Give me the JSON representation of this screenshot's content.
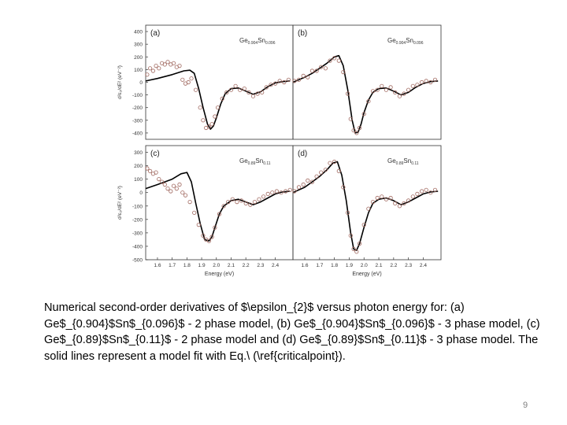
{
  "caption": "Numerical second-order derivatives of $\\epsilon_{2}$ versus photon energy for: (a) Ge$_{0.904}$Sn$_{0.096}$ - 2 phase model, (b) Ge$_{0.904}$Sn$_{0.096}$ - 3 phase model, (c) Ge$_{0.89}$Sn$_{0.11}$ - 2 phase model and (d) Ge$_{0.89}$Sn$_{0.11}$ - 3 phase model. The solid lines represent a model fit with Eq.\\ (\\ref{criticalpoint}).",
  "slide_number": "9",
  "colors": {
    "fit_line": "#000000",
    "data_marker": "#a0685f",
    "axis": "#333333"
  },
  "chart_data": [
    {
      "type": "line",
      "panel_label": "(a)",
      "composition": {
        "main1": "Ge",
        "sub1": "0.904",
        "main2": "Sn",
        "sub2": "0.096"
      },
      "ylabel": "d²ε₂/dE² (eV⁻²)",
      "xlabel": "",
      "xlim": [
        1.52,
        2.52
      ],
      "ylim": [
        -450,
        450
      ],
      "yticks": [
        400,
        300,
        200,
        100,
        0,
        -100,
        -200,
        -300,
        -400
      ],
      "xticks": [],
      "series": [
        {
          "kind": "fit",
          "x": [
            1.52,
            1.6,
            1.7,
            1.78,
            1.82,
            1.85,
            1.88,
            1.91,
            1.94,
            1.96,
            1.98,
            2.0,
            2.03,
            2.06,
            2.1,
            2.15,
            2.2,
            2.25,
            2.3,
            2.35,
            2.4,
            2.45,
            2.5
          ],
          "y": [
            10,
            30,
            60,
            90,
            95,
            70,
            -50,
            -200,
            -330,
            -370,
            -345,
            -280,
            -170,
            -90,
            -50,
            -45,
            -70,
            -95,
            -75,
            -35,
            -5,
            5,
            10
          ]
        },
        {
          "kind": "data",
          "x": [
            1.53,
            1.55,
            1.57,
            1.59,
            1.61,
            1.63,
            1.65,
            1.67,
            1.69,
            1.71,
            1.73,
            1.75,
            1.77,
            1.79,
            1.81,
            1.83,
            1.86,
            1.89,
            1.91,
            1.93,
            1.95,
            1.97,
            1.99,
            2.01,
            2.04,
            2.07,
            2.1,
            2.13,
            2.16,
            2.19,
            2.22,
            2.25,
            2.28,
            2.31,
            2.34,
            2.37,
            2.4,
            2.43,
            2.46,
            2.49
          ],
          "y": [
            60,
            110,
            90,
            130,
            110,
            150,
            140,
            160,
            140,
            150,
            120,
            130,
            20,
            -10,
            0,
            30,
            -60,
            -200,
            -300,
            -360,
            -350,
            -330,
            -270,
            -200,
            -130,
            -80,
            -60,
            -30,
            -60,
            -50,
            -80,
            -110,
            -90,
            -80,
            -40,
            -20,
            -10,
            10,
            0,
            20
          ]
        }
      ]
    },
    {
      "type": "line",
      "panel_label": "(b)",
      "composition": {
        "main1": "Ge",
        "sub1": "0.904",
        "main2": "Sn",
        "sub2": "0.096"
      },
      "ylabel": "",
      "xlabel": "",
      "xlim": [
        1.52,
        2.52
      ],
      "ylim": [
        -450,
        450
      ],
      "yticks": [],
      "xticks": [],
      "series": [
        {
          "kind": "fit",
          "x": [
            1.52,
            1.6,
            1.65,
            1.7,
            1.75,
            1.8,
            1.83,
            1.86,
            1.89,
            1.92,
            1.94,
            1.96,
            1.98,
            2.0,
            2.03,
            2.06,
            2.1,
            2.15,
            2.2,
            2.25,
            2.3,
            2.35,
            2.4,
            2.45,
            2.5
          ],
          "y": [
            0,
            40,
            70,
            110,
            150,
            200,
            210,
            130,
            -60,
            -300,
            -400,
            -395,
            -330,
            -240,
            -140,
            -80,
            -50,
            -45,
            -70,
            -100,
            -80,
            -40,
            -10,
            5,
            10
          ]
        },
        {
          "kind": "data",
          "x": [
            1.53,
            1.56,
            1.59,
            1.62,
            1.65,
            1.68,
            1.71,
            1.74,
            1.77,
            1.8,
            1.83,
            1.86,
            1.89,
            1.91,
            1.93,
            1.95,
            1.97,
            2.0,
            2.03,
            2.06,
            2.09,
            2.12,
            2.15,
            2.18,
            2.21,
            2.24,
            2.27,
            2.3,
            2.33,
            2.36,
            2.39,
            2.42,
            2.45,
            2.48
          ],
          "y": [
            10,
            20,
            50,
            40,
            90,
            90,
            120,
            110,
            170,
            190,
            170,
            80,
            -90,
            -290,
            -380,
            -400,
            -360,
            -250,
            -150,
            -70,
            -60,
            -30,
            -60,
            -40,
            -80,
            -110,
            -90,
            -60,
            -30,
            -20,
            0,
            10,
            0,
            20
          ]
        }
      ]
    },
    {
      "type": "line",
      "panel_label": "(c)",
      "composition": {
        "main1": "Ge",
        "sub1": "0.89",
        "main2": "Sn",
        "sub2": "0.11"
      },
      "ylabel": "d²ε₂/dE² (eV⁻²)",
      "xlabel": "Energy (eV)",
      "xlim": [
        1.52,
        2.52
      ],
      "ylim": [
        -500,
        350
      ],
      "yticks": [
        300,
        200,
        100,
        0,
        -100,
        -200,
        -300,
        -400,
        -500
      ],
      "xticks": [
        "1.6",
        "1.7",
        "1.8",
        "1.9",
        "2.0",
        "2.1",
        "2.2",
        "2.3",
        "2.4"
      ],
      "series": [
        {
          "kind": "fit",
          "x": [
            1.52,
            1.6,
            1.7,
            1.76,
            1.8,
            1.83,
            1.86,
            1.89,
            1.92,
            1.95,
            1.97,
            1.99,
            2.02,
            2.05,
            2.1,
            2.15,
            2.2,
            2.25,
            2.3,
            2.35,
            2.4,
            2.45,
            2.5
          ],
          "y": [
            30,
            60,
            100,
            140,
            150,
            80,
            -80,
            -230,
            -350,
            -360,
            -330,
            -260,
            -160,
            -100,
            -60,
            -50,
            -70,
            -90,
            -70,
            -40,
            -10,
            5,
            10
          ]
        },
        {
          "kind": "data",
          "x": [
            1.53,
            1.55,
            1.57,
            1.59,
            1.61,
            1.63,
            1.65,
            1.67,
            1.69,
            1.71,
            1.73,
            1.75,
            1.77,
            1.79,
            1.82,
            1.85,
            1.88,
            1.91,
            1.93,
            1.95,
            1.97,
            1.99,
            2.02,
            2.05,
            2.08,
            2.11,
            2.14,
            2.17,
            2.2,
            2.23,
            2.26,
            2.29,
            2.32,
            2.35,
            2.38,
            2.41,
            2.44,
            2.47,
            2.5
          ],
          "y": [
            180,
            160,
            140,
            150,
            100,
            80,
            60,
            30,
            10,
            50,
            30,
            60,
            0,
            -20,
            -70,
            -150,
            -240,
            -320,
            -350,
            -360,
            -330,
            -260,
            -160,
            -100,
            -70,
            -50,
            -70,
            -60,
            -80,
            -90,
            -70,
            -50,
            -30,
            -10,
            0,
            10,
            0,
            10,
            20
          ]
        }
      ]
    },
    {
      "type": "line",
      "panel_label": "(d)",
      "composition": {
        "main1": "Ge",
        "sub1": "0.89",
        "main2": "Sn",
        "sub2": "0.11"
      },
      "ylabel": "",
      "xlabel": "Energy (eV)",
      "xlim": [
        1.52,
        2.52
      ],
      "ylim": [
        -500,
        350
      ],
      "yticks": [],
      "xticks": [
        "1.6",
        "1.7",
        "1.8",
        "1.9",
        "2.0",
        "2.1",
        "2.2",
        "2.3",
        "2.4"
      ],
      "series": [
        {
          "kind": "fit",
          "x": [
            1.52,
            1.6,
            1.65,
            1.7,
            1.75,
            1.79,
            1.82,
            1.85,
            1.88,
            1.91,
            1.93,
            1.95,
            1.97,
            2.0,
            2.03,
            2.06,
            2.1,
            2.15,
            2.2,
            2.25,
            2.3,
            2.35,
            2.4,
            2.45,
            2.5
          ],
          "y": [
            0,
            40,
            80,
            120,
            170,
            220,
            230,
            130,
            -60,
            -300,
            -420,
            -430,
            -380,
            -260,
            -150,
            -80,
            -50,
            -40,
            -60,
            -90,
            -70,
            -40,
            -10,
            5,
            10
          ]
        },
        {
          "kind": "data",
          "x": [
            1.53,
            1.56,
            1.59,
            1.62,
            1.65,
            1.68,
            1.71,
            1.74,
            1.77,
            1.8,
            1.83,
            1.86,
            1.89,
            1.91,
            1.93,
            1.95,
            1.97,
            2.0,
            2.03,
            2.06,
            2.09,
            2.12,
            2.15,
            2.18,
            2.21,
            2.24,
            2.27,
            2.3,
            2.33,
            2.36,
            2.39,
            2.42,
            2.45,
            2.48
          ],
          "y": [
            10,
            40,
            60,
            90,
            80,
            120,
            150,
            170,
            220,
            230,
            160,
            40,
            -150,
            -320,
            -420,
            -440,
            -380,
            -240,
            -120,
            -70,
            -40,
            -30,
            -50,
            -40,
            -80,
            -100,
            -80,
            -60,
            -30,
            -10,
            10,
            20,
            0,
            20
          ]
        }
      ]
    }
  ]
}
